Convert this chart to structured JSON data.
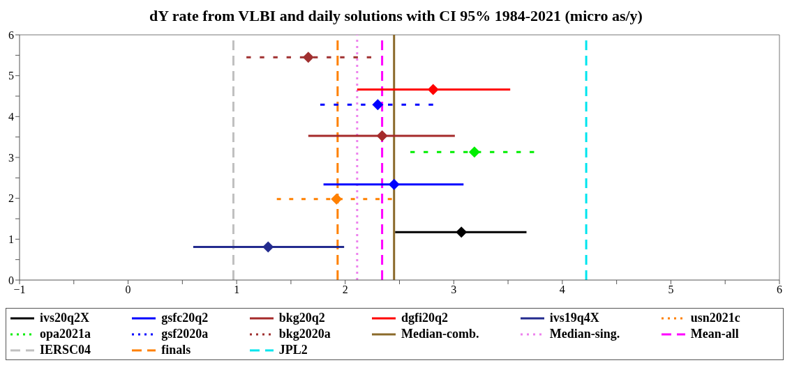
{
  "chart_data": {
    "type": "scatter",
    "title": "dY rate from VLBI and daily solutions with CI 95% 1984-2021 (micro as/y)",
    "xlim": [
      -1,
      6
    ],
    "xticks": [
      -1,
      {
        "value": -0.5,
        "label": null
      },
      0,
      {
        "value": 0.5,
        "label": null
      },
      1,
      {
        "value": 1.5,
        "label": null
      },
      2,
      {
        "value": 2.5,
        "label": null
      },
      3,
      {
        "value": 3.5,
        "label": null
      },
      4,
      {
        "value": 4.5,
        "label": null
      },
      5,
      {
        "value": 5.5,
        "label": null
      },
      6
    ],
    "ylim": [
      0,
      6
    ],
    "yticks": [
      0,
      {
        "value": 0.5,
        "label": null
      },
      1,
      {
        "value": 1.5,
        "label": null
      },
      2,
      {
        "value": 2.5,
        "label": null
      },
      3,
      {
        "value": 3.5,
        "label": null
      },
      4,
      {
        "value": 4.5,
        "label": null
      },
      5,
      {
        "value": 5.5,
        "label": null
      },
      6
    ],
    "legend": "bottom",
    "marker": "diamond",
    "series": [
      {
        "name": "ivs20q2X",
        "color": "#000000",
        "line_style": "solid",
        "x": [
          3.07
        ],
        "values": [
          1.17
        ],
        "xerrors": [
          [
            2.46,
            3.67
          ]
        ]
      },
      {
        "name": "gsfc20q2",
        "color": "#0000ff",
        "line_style": "solid",
        "x": [
          2.45
        ],
        "values": [
          2.34
        ],
        "xerrors": [
          [
            1.8,
            3.09
          ]
        ]
      },
      {
        "name": "bkg20q2",
        "color": "#a52a2a",
        "line_style": "solid",
        "x": [
          2.34
        ],
        "values": [
          3.53
        ],
        "xerrors": [
          [
            1.66,
            3.01
          ]
        ]
      },
      {
        "name": "dgfi20q2",
        "color": "#ff0000",
        "line_style": "solid",
        "x": [
          2.81
        ],
        "values": [
          4.66
        ],
        "xerrors": [
          [
            2.11,
            3.52
          ]
        ]
      },
      {
        "name": "ivs19q4X",
        "color": "#232b8e",
        "line_style": "solid",
        "x": [
          1.29
        ],
        "values": [
          0.81
        ],
        "xerrors": [
          [
            0.6,
            1.99
          ]
        ]
      },
      {
        "name": "usn2021c",
        "color": "#ff8000",
        "line_style": "dotted",
        "x": [
          1.92
        ],
        "values": [
          1.98
        ],
        "xerrors": [
          [
            1.37,
            2.43
          ]
        ]
      },
      {
        "name": "opa2021a",
        "color": "#00ee00",
        "line_style": "dotted",
        "x": [
          3.19
        ],
        "values": [
          3.13
        ],
        "xerrors": [
          [
            2.6,
            3.74
          ]
        ]
      },
      {
        "name": "gsf2020a",
        "color": "#0000ff",
        "line_style": "dotted",
        "x": [
          2.3
        ],
        "values": [
          4.29
        ],
        "xerrors": [
          [
            1.77,
            2.81
          ]
        ]
      },
      {
        "name": "bkg2020a",
        "color": "#a03030",
        "line_style": "dotted",
        "x": [
          1.66
        ],
        "values": [
          5.45
        ],
        "xerrors": [
          [
            1.09,
            2.24
          ]
        ]
      }
    ],
    "ref_lines": [
      {
        "axis": "x",
        "value": 2.45,
        "label": "Median-comb.",
        "color": "#8b6a2b",
        "line_style": "solid"
      },
      {
        "axis": "x",
        "value": 2.11,
        "label": "Median-sing.",
        "color": "#ee82ee",
        "line_style": "dotted"
      },
      {
        "axis": "x",
        "value": 2.34,
        "label": "Mean-all",
        "color": "#ff00ff",
        "line_style": "dashed"
      },
      {
        "axis": "x",
        "value": 0.97,
        "label": "IERSC04",
        "color": "#c0c0c0",
        "line_style": "dashed"
      },
      {
        "axis": "x",
        "value": 1.93,
        "label": "finals",
        "color": "#ff8000",
        "line_style": "dashed"
      },
      {
        "axis": "x",
        "value": 4.22,
        "label": "JPL2",
        "color": "#00e5ee",
        "line_style": "dashed"
      }
    ]
  }
}
